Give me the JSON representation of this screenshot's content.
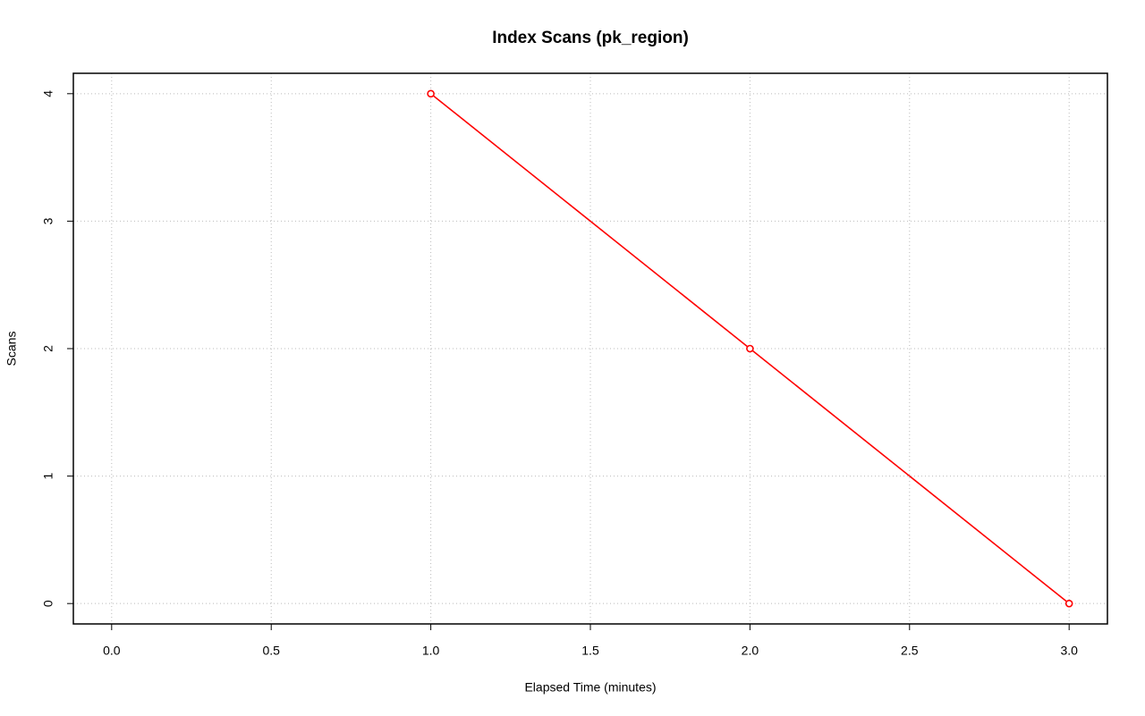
{
  "chart_data": {
    "type": "line",
    "title": "Index Scans (pk_region)",
    "x_label": "Elapsed Time (minutes)",
    "y_label": "Scans",
    "x": [
      1,
      2,
      3
    ],
    "values": [
      4,
      2,
      0
    ],
    "color": "#ff0000",
    "marker": "open-circle",
    "xlim": [
      -0.12,
      3.12
    ],
    "ylim": [
      -0.16,
      4.16
    ],
    "xticks": [
      {
        "value": 0,
        "label": "0.0"
      },
      0.5,
      {
        "value": 1,
        "label": "1.0"
      },
      1.5,
      {
        "value": 2,
        "label": "2.0"
      },
      2.5,
      {
        "value": 3,
        "label": "3.0"
      }
    ],
    "yticks": [
      0,
      1,
      2,
      3,
      4
    ],
    "grid": true
  }
}
